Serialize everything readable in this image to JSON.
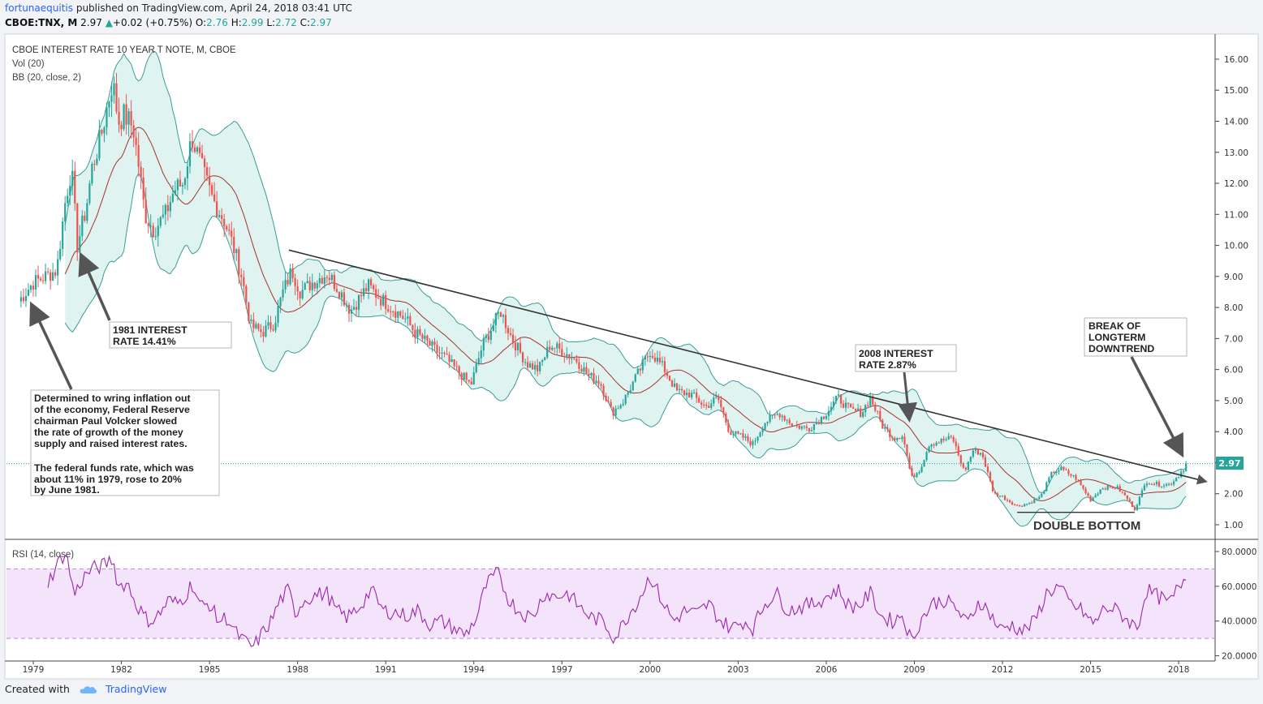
{
  "header": {
    "author": "fortunaequitis",
    "published_text": "published on TradingView.com, April 24, 2018 03:41 UTC",
    "symbol": "CBOE:TNX, M",
    "last": "2.97",
    "change": "+0.02 (+0.75%)",
    "o_label": "O:",
    "o_value": "2.76",
    "h_label": "H:",
    "h_value": "2.99",
    "l_label": "L:",
    "l_value": "2.72",
    "c_label": "C:",
    "c_value": "2.97"
  },
  "legend": {
    "title": "CBOE INTEREST RATE 10 YEAR T NOTE, M, CBOE",
    "vol": "Vol (20)",
    "bb": "BB (20, close, 2)",
    "rsi": "RSI (14, close)"
  },
  "price_axis": {
    "ticks": [
      "16.00",
      "15.00",
      "14.00",
      "13.00",
      "12.00",
      "11.00",
      "10.00",
      "9.00",
      "8.00",
      "7.00",
      "6.00",
      "5.00",
      "4.00",
      "3.00",
      "2.00",
      "1.00"
    ],
    "current_label": "2.97",
    "current_value": 2.97
  },
  "rsi_axis": {
    "ticks": [
      "80.0000",
      "60.0000",
      "40.0000",
      "20.0000"
    ],
    "band_high": 70,
    "band_low": 30
  },
  "time_axis": {
    "ticks": [
      "1979",
      "1982",
      "1985",
      "1988",
      "1991",
      "1994",
      "1997",
      "2000",
      "2003",
      "2006",
      "2009",
      "2012",
      "2015",
      "2018"
    ]
  },
  "annotations": {
    "volcker": [
      "Determined to wring inflation out",
      "of the economy, Federal Reserve",
      "chairman Paul Volcker slowed",
      "the rate of growth of the money",
      "supply and raised interest rates.",
      "",
      "The federal funds rate, which was",
      "about 11% in 1979, rose to 20%",
      "by June 1981."
    ],
    "rate_1981": [
      "1981 INTEREST",
      "RATE 14.41%"
    ],
    "rate_2008": [
      "2008 INTEREST",
      "RATE 2.87%"
    ],
    "breakout": [
      "BREAK OF",
      "LONGTERM",
      "DOWNTREND"
    ],
    "double_bottom": "DOUBLE BOTTOM"
  },
  "footer": {
    "created_with": "Created with",
    "brand": "TradingView"
  },
  "colors": {
    "up": "#26a69a",
    "down": "#ef5350",
    "bb_fill": "#dff3f1",
    "bb_line": "#3c9c96",
    "bb_mid": "#a5332c",
    "rsi_line": "#9b27af",
    "rsi_band": "#f3e3fb",
    "trend": "#333333",
    "annotation_arrow": "#555555"
  },
  "chart_data": {
    "type": "candlestick",
    "title": "CBOE INTEREST RATE 10 YEAR T NOTE, M, CBOE",
    "interval": "monthly",
    "x_range": [
      1979.0,
      2018.3
    ],
    "y_range": [
      0.7,
      16.5
    ],
    "price_path": [
      [
        1978.5,
        8.2
      ],
      [
        1979.0,
        8.8
      ],
      [
        1979.4,
        9.0
      ],
      [
        1979.8,
        9.2
      ],
      [
        1980.1,
        11.5
      ],
      [
        1980.3,
        12.5
      ],
      [
        1980.5,
        10.0
      ],
      [
        1980.8,
        11.2
      ],
      [
        1981.0,
        12.5
      ],
      [
        1981.3,
        13.5
      ],
      [
        1981.7,
        15.3
      ],
      [
        1981.9,
        14.0
      ],
      [
        1982.1,
        14.2
      ],
      [
        1982.4,
        13.8
      ],
      [
        1982.6,
        12.5
      ],
      [
        1982.8,
        11.0
      ],
      [
        1983.1,
        10.5
      ],
      [
        1983.5,
        11.0
      ],
      [
        1983.8,
        11.8
      ],
      [
        1984.1,
        12.0
      ],
      [
        1984.4,
        13.5
      ],
      [
        1984.8,
        12.3
      ],
      [
        1985.1,
        11.5
      ],
      [
        1985.5,
        10.8
      ],
      [
        1985.8,
        10.0
      ],
      [
        1986.1,
        9.0
      ],
      [
        1986.4,
        7.4
      ],
      [
        1986.8,
        7.2
      ],
      [
        1987.2,
        7.5
      ],
      [
        1987.5,
        8.5
      ],
      [
        1987.8,
        9.2
      ],
      [
        1988.1,
        8.5
      ],
      [
        1988.5,
        8.8
      ],
      [
        1989.0,
        9.1
      ],
      [
        1989.4,
        8.6
      ],
      [
        1989.8,
        7.9
      ],
      [
        1990.4,
        8.7
      ],
      [
        1990.8,
        8.3
      ],
      [
        1991.2,
        8.0
      ],
      [
        1991.7,
        7.6
      ],
      [
        1992.0,
        7.2
      ],
      [
        1992.6,
        6.7
      ],
      [
        1993.0,
        6.4
      ],
      [
        1993.5,
        5.9
      ],
      [
        1993.9,
        5.5
      ],
      [
        1994.3,
        6.8
      ],
      [
        1994.7,
        7.5
      ],
      [
        1994.9,
        7.9
      ],
      [
        1995.3,
        7.0
      ],
      [
        1995.8,
        6.2
      ],
      [
        1996.2,
        6.0
      ],
      [
        1996.6,
        6.8
      ],
      [
        1997.0,
        6.6
      ],
      [
        1997.5,
        6.3
      ],
      [
        1997.9,
        5.8
      ],
      [
        1998.3,
        5.6
      ],
      [
        1998.7,
        4.6
      ],
      [
        1999.1,
        5.0
      ],
      [
        1999.6,
        5.9
      ],
      [
        2000.0,
        6.6
      ],
      [
        2000.5,
        6.0
      ],
      [
        2000.9,
        5.3
      ],
      [
        2001.4,
        5.2
      ],
      [
        2001.9,
        4.8
      ],
      [
        2002.3,
        5.1
      ],
      [
        2002.7,
        4.0
      ],
      [
        2003.2,
        3.8
      ],
      [
        2003.5,
        3.6
      ],
      [
        2003.9,
        4.3
      ],
      [
        2004.4,
        4.6
      ],
      [
        2004.9,
        4.2
      ],
      [
        2005.4,
        4.1
      ],
      [
        2005.9,
        4.5
      ],
      [
        2006.4,
        5.1
      ],
      [
        2006.8,
        4.7
      ],
      [
        2007.2,
        4.6
      ],
      [
        2007.5,
        5.1
      ],
      [
        2007.9,
        4.2
      ],
      [
        2008.3,
        3.8
      ],
      [
        2008.6,
        3.9
      ],
      [
        2008.9,
        2.5
      ],
      [
        2009.2,
        2.8
      ],
      [
        2009.5,
        3.6
      ],
      [
        2009.9,
        3.7
      ],
      [
        2010.3,
        3.8
      ],
      [
        2010.7,
        2.7
      ],
      [
        2011.0,
        3.4
      ],
      [
        2011.3,
        3.3
      ],
      [
        2011.7,
        2.0
      ],
      [
        2012.0,
        1.9
      ],
      [
        2012.5,
        1.6
      ],
      [
        2012.9,
        1.7
      ],
      [
        2013.3,
        1.9
      ],
      [
        2013.7,
        2.7
      ],
      [
        2014.0,
        2.8
      ],
      [
        2014.5,
        2.5
      ],
      [
        2015.0,
        1.8
      ],
      [
        2015.4,
        2.2
      ],
      [
        2015.9,
        2.2
      ],
      [
        2016.2,
        1.9
      ],
      [
        2016.5,
        1.5
      ],
      [
        2016.9,
        2.4
      ],
      [
        2017.3,
        2.3
      ],
      [
        2017.7,
        2.3
      ],
      [
        2018.0,
        2.6
      ],
      [
        2018.3,
        2.97
      ]
    ],
    "bollinger": {
      "period": 20,
      "deviations": 2
    },
    "rsi_path": [
      [
        1979.5,
        62
      ],
      [
        1979.8,
        72
      ],
      [
        1980.1,
        80
      ],
      [
        1980.4,
        55
      ],
      [
        1980.7,
        65
      ],
      [
        1981.0,
        70
      ],
      [
        1981.4,
        72
      ],
      [
        1981.7,
        76
      ],
      [
        1981.9,
        60
      ],
      [
        1982.2,
        62
      ],
      [
        1982.5,
        50
      ],
      [
        1982.8,
        42
      ],
      [
        1983.0,
        40
      ],
      [
        1983.3,
        44
      ],
      [
        1983.6,
        52
      ],
      [
        1983.9,
        50
      ],
      [
        1984.2,
        55
      ],
      [
        1984.4,
        62
      ],
      [
        1984.7,
        48
      ],
      [
        1985.0,
        50
      ],
      [
        1985.3,
        40
      ],
      [
        1985.6,
        42
      ],
      [
        1985.9,
        33
      ],
      [
        1986.2,
        28
      ],
      [
        1986.5,
        25
      ],
      [
        1986.8,
        33
      ],
      [
        1987.1,
        40
      ],
      [
        1987.4,
        52
      ],
      [
        1987.7,
        58
      ],
      [
        1987.9,
        44
      ],
      [
        1988.2,
        52
      ],
      [
        1988.6,
        55
      ],
      [
        1989.0,
        56
      ],
      [
        1989.3,
        46
      ],
      [
        1989.7,
        42
      ],
      [
        1990.1,
        48
      ],
      [
        1990.5,
        58
      ],
      [
        1990.9,
        46
      ],
      [
        1991.3,
        45
      ],
      [
        1991.7,
        43
      ],
      [
        1992.1,
        46
      ],
      [
        1992.5,
        38
      ],
      [
        1992.9,
        40
      ],
      [
        1993.3,
        36
      ],
      [
        1993.7,
        32
      ],
      [
        1994.1,
        42
      ],
      [
        1994.4,
        60
      ],
      [
        1994.8,
        68
      ],
      [
        1995.2,
        52
      ],
      [
        1995.6,
        45
      ],
      [
        1996.0,
        42
      ],
      [
        1996.4,
        56
      ],
      [
        1996.8,
        54
      ],
      [
        1997.2,
        56
      ],
      [
        1997.6,
        48
      ],
      [
        1998.0,
        42
      ],
      [
        1998.4,
        40
      ],
      [
        1998.8,
        30
      ],
      [
        1999.2,
        42
      ],
      [
        1999.6,
        52
      ],
      [
        2000.0,
        66
      ],
      [
        2000.4,
        52
      ],
      [
        2000.8,
        40
      ],
      [
        2001.2,
        46
      ],
      [
        2001.6,
        44
      ],
      [
        2002.0,
        50
      ],
      [
        2002.4,
        40
      ],
      [
        2002.8,
        36
      ],
      [
        2003.2,
        40
      ],
      [
        2003.5,
        36
      ],
      [
        2003.9,
        50
      ],
      [
        2004.3,
        56
      ],
      [
        2004.7,
        46
      ],
      [
        2005.1,
        48
      ],
      [
        2005.6,
        50
      ],
      [
        2006.0,
        54
      ],
      [
        2006.4,
        58
      ],
      [
        2006.8,
        48
      ],
      [
        2007.2,
        50
      ],
      [
        2007.5,
        56
      ],
      [
        2007.9,
        42
      ],
      [
        2008.3,
        40
      ],
      [
        2008.6,
        44
      ],
      [
        2008.9,
        28
      ],
      [
        2009.2,
        40
      ],
      [
        2009.6,
        50
      ],
      [
        2010.0,
        52
      ],
      [
        2010.4,
        48
      ],
      [
        2010.8,
        38
      ],
      [
        2011.2,
        52
      ],
      [
        2011.6,
        44
      ],
      [
        2011.9,
        35
      ],
      [
        2012.3,
        38
      ],
      [
        2012.7,
        34
      ],
      [
        2013.1,
        40
      ],
      [
        2013.5,
        56
      ],
      [
        2013.9,
        60
      ],
      [
        2014.3,
        50
      ],
      [
        2014.7,
        46
      ],
      [
        2015.1,
        38
      ],
      [
        2015.5,
        48
      ],
      [
        2015.9,
        46
      ],
      [
        2016.3,
        40
      ],
      [
        2016.6,
        36
      ],
      [
        2016.9,
        58
      ],
      [
        2017.3,
        54
      ],
      [
        2017.7,
        50
      ],
      [
        2018.0,
        60
      ],
      [
        2018.3,
        67
      ]
    ],
    "trendline": {
      "from": [
        1987.7,
        9.85
      ],
      "to": [
        2018.9,
        2.4
      ]
    },
    "double_bottom_line": {
      "from": [
        2012.5,
        1.4
      ],
      "to": [
        2016.5,
        1.4
      ]
    }
  }
}
